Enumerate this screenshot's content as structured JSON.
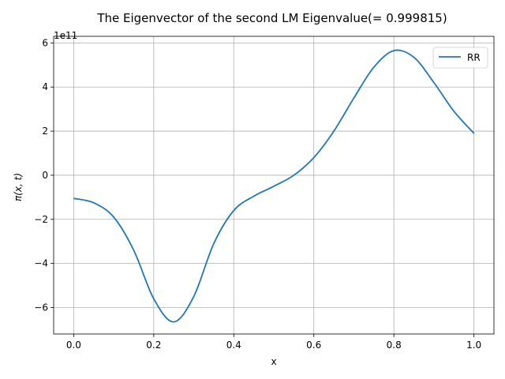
{
  "chart_data": {
    "type": "line",
    "title": "The Eigenvector of the second LM Eigenvalue(= 0.999815)",
    "xlabel": "x",
    "ylabel": "π(x, t)",
    "offset_label": "1e11",
    "xlim": [
      -0.05,
      1.05
    ],
    "ylim": [
      -7.2,
      6.3
    ],
    "x_ticks": [
      0.0,
      0.2,
      0.4,
      0.6,
      0.8,
      1.0
    ],
    "x_tick_labels": [
      "0.0",
      "0.2",
      "0.4",
      "0.6",
      "0.8",
      "1.0"
    ],
    "y_ticks": [
      -6,
      -4,
      -2,
      0,
      2,
      4,
      6
    ],
    "y_tick_labels": [
      "−6",
      "−4",
      "−2",
      "0",
      "2",
      "4",
      "6"
    ],
    "grid": true,
    "legend_position": "top-right",
    "series": [
      {
        "name": "RR",
        "color": "#1f77b4",
        "x": [
          0.0,
          0.05,
          0.1,
          0.15,
          0.2,
          0.25,
          0.3,
          0.35,
          0.4,
          0.45,
          0.5,
          0.55,
          0.6,
          0.65,
          0.7,
          0.75,
          0.8,
          0.85,
          0.9,
          0.95,
          1.0
        ],
        "values": [
          -1.05,
          -1.25,
          -1.9,
          -3.4,
          -5.6,
          -6.65,
          -5.5,
          -3.1,
          -1.6,
          -0.95,
          -0.5,
          0.0,
          0.8,
          2.0,
          3.5,
          4.9,
          5.65,
          5.35,
          4.2,
          2.9,
          1.9
        ]
      }
    ]
  }
}
